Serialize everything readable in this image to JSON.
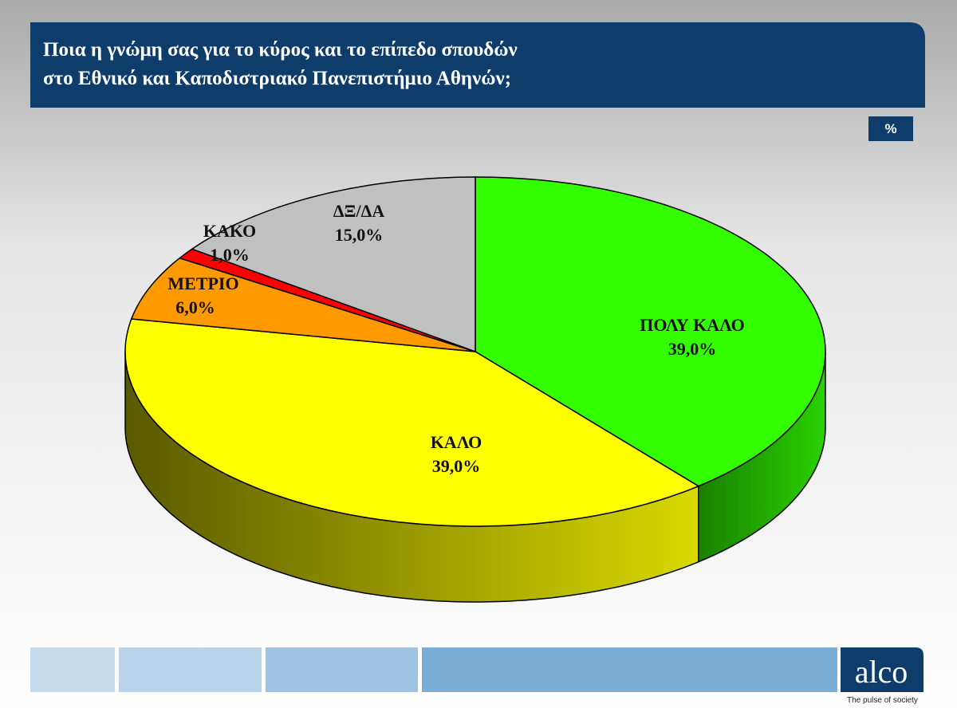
{
  "header": {
    "title": [
      "Ποια η γνώμη σας για το κύρος και το επίπεδο σπουδών",
      "στο Εθνικό και Καποδιστριακό Πανεπιστήμιο Αθηνών;"
    ],
    "unit_badge": "%"
  },
  "chart_data": {
    "type": "pie",
    "categories": [
      "ΠΟΛΥ ΚΑΛΟ",
      "ΚΑΛΟ",
      "ΜΕΤΡΙΟ",
      "ΚΑΚΟ",
      "ΔΞ/ΔΑ"
    ],
    "values": [
      39,
      39,
      6,
      1,
      15
    ],
    "value_labels": [
      "39,0%",
      "39,0%",
      "6,0%",
      "1,0%",
      "15,0%"
    ],
    "colors": [
      "#33ff00",
      "#ffff00",
      "#ff9900",
      "#ff0000",
      "#c0c0c0"
    ]
  },
  "footer": {
    "logo": "alco",
    "tagline": "The pulse of society"
  }
}
